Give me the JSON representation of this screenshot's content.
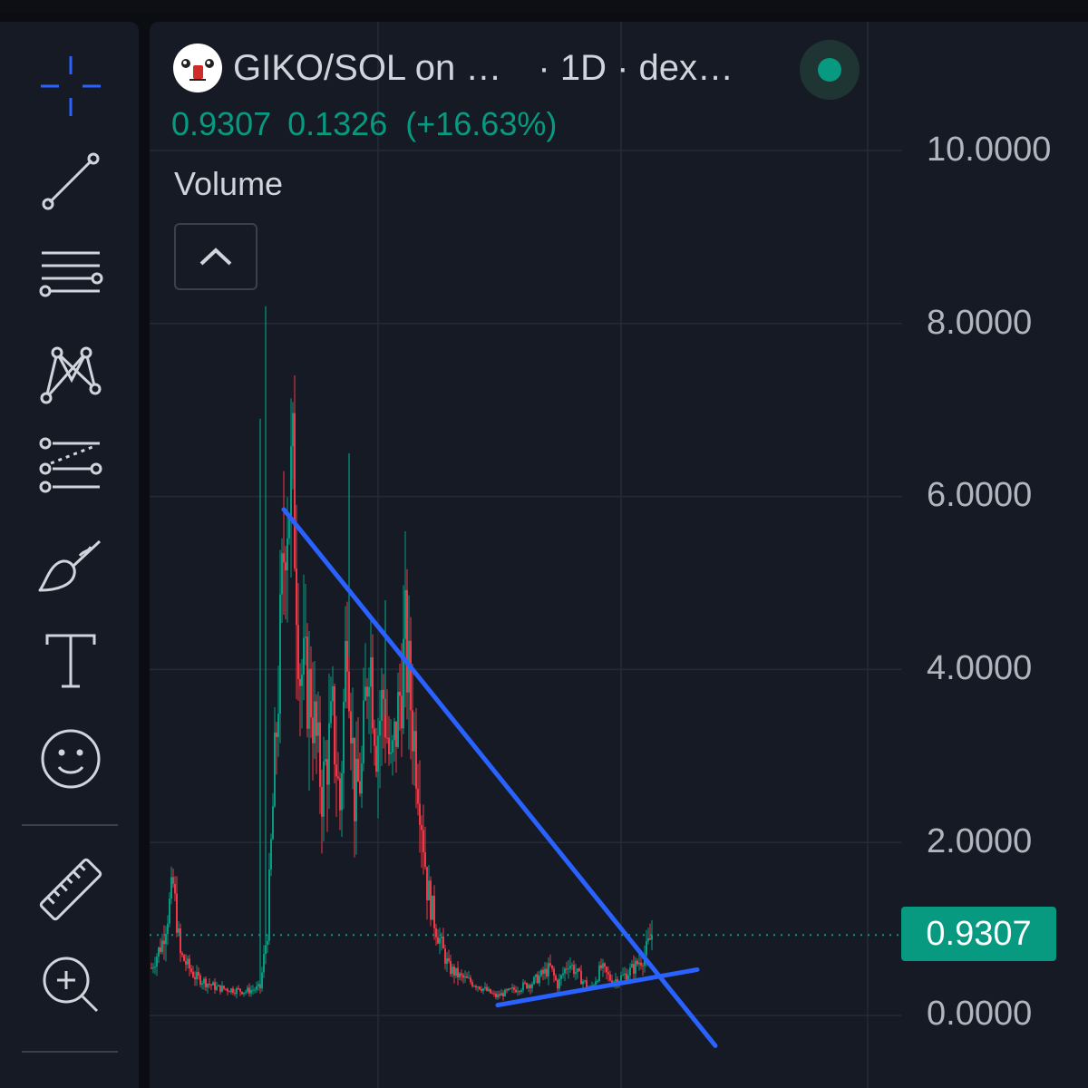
{
  "header": {
    "symbol": "GIKO/SOL on …",
    "meta": "· 1D · dex…",
    "status": "live"
  },
  "price": {
    "last": "0.9307",
    "change": "0.1326",
    "change_pct": "(+16.63%)"
  },
  "indicator": {
    "label": "Volume"
  },
  "toolbar": {
    "tools": [
      {
        "name": "crosshair-icon"
      },
      {
        "name": "trend-line-icon"
      },
      {
        "name": "horizontal-lines-icon"
      },
      {
        "name": "pattern-icon"
      },
      {
        "name": "fib-retracement-icon"
      },
      {
        "name": "brush-icon"
      },
      {
        "name": "text-icon"
      },
      {
        "name": "emoji-icon"
      },
      {
        "name": "ruler-icon"
      },
      {
        "name": "zoom-in-icon"
      }
    ]
  },
  "colors": {
    "up": "#089981",
    "down": "#f23645",
    "drawing": "#2962ff",
    "background": "#161a24"
  },
  "price_axis": {
    "labels": [
      "10.0000",
      "8.0000",
      "6.0000",
      "4.0000",
      "2.0000",
      "0.0000"
    ],
    "current_tag": "0.9307"
  },
  "chart_data": {
    "type": "candlestick",
    "timeframe": "1D",
    "ylim": [
      0,
      10
    ],
    "last_price": 0.9307,
    "price_path": [
      [
        0,
        0.55
      ],
      [
        3,
        0.85
      ],
      [
        6,
        1.5
      ],
      [
        8,
        0.7
      ],
      [
        12,
        0.45
      ],
      [
        18,
        0.32
      ],
      [
        26,
        0.28
      ],
      [
        30,
        0.32
      ],
      [
        32,
        1.0
      ],
      [
        35,
        3.8
      ],
      [
        37,
        5.9
      ],
      [
        39,
        6.2
      ],
      [
        41,
        4.0
      ],
      [
        44,
        3.7
      ],
      [
        47,
        2.6
      ],
      [
        50,
        3.4
      ],
      [
        52,
        2.4
      ],
      [
        54,
        4.7
      ],
      [
        56,
        2.5
      ],
      [
        58,
        2.8
      ],
      [
        60,
        4.4
      ],
      [
        62,
        3.2
      ],
      [
        64,
        3.7
      ],
      [
        66,
        2.8
      ],
      [
        68,
        3.5
      ],
      [
        70,
        4.3
      ],
      [
        72,
        3.4
      ],
      [
        74,
        2.6
      ],
      [
        76,
        1.5
      ],
      [
        78,
        1.1
      ],
      [
        80,
        0.8
      ],
      [
        82,
        0.55
      ],
      [
        85,
        0.45
      ],
      [
        90,
        0.35
      ],
      [
        95,
        0.22
      ],
      [
        100,
        0.3
      ],
      [
        105,
        0.38
      ],
      [
        110,
        0.55
      ],
      [
        112,
        0.35
      ],
      [
        115,
        0.62
      ],
      [
        118,
        0.45
      ],
      [
        121,
        0.3
      ],
      [
        124,
        0.55
      ],
      [
        127,
        0.4
      ],
      [
        130,
        0.45
      ],
      [
        133,
        0.55
      ],
      [
        136,
        0.7
      ],
      [
        138,
        0.93
      ]
    ],
    "drawings": [
      {
        "type": "trend-line",
        "start": [
          37,
          5.85
        ],
        "end": [
          156,
          -0.35
        ]
      },
      {
        "type": "trend-line",
        "start": [
          96,
          0.12
        ],
        "end": [
          151,
          0.53
        ]
      }
    ]
  }
}
